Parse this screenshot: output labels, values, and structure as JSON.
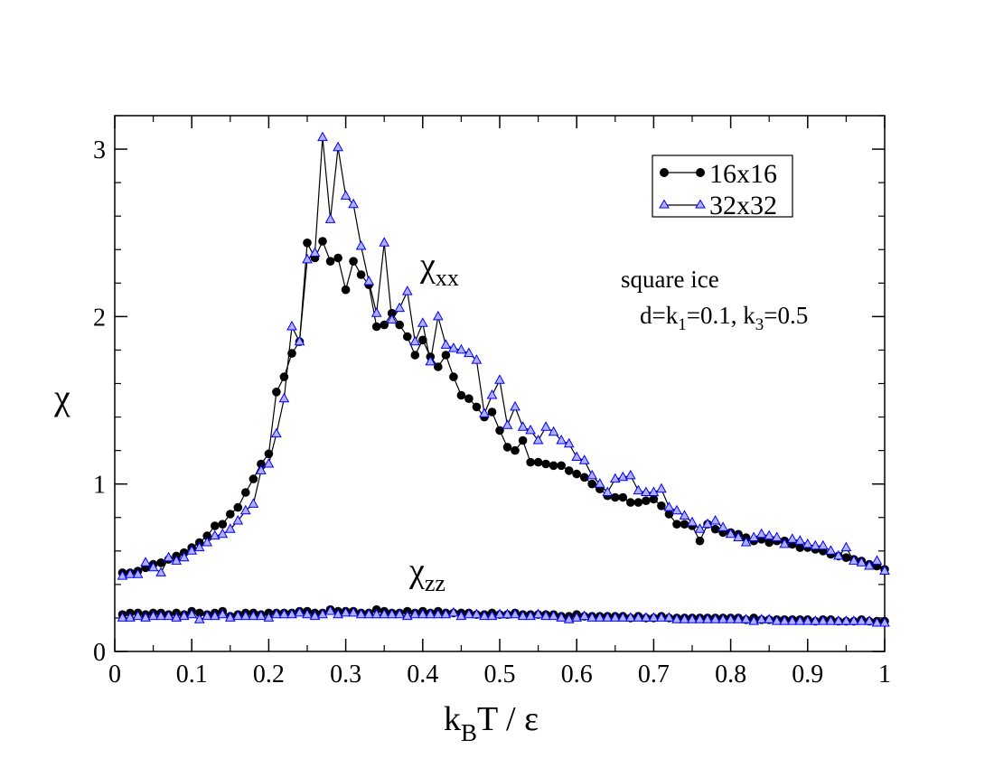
{
  "chart_data": {
    "type": "scatter",
    "title": "",
    "xlabel": {
      "main": "k",
      "sub": "B",
      "rest": "T / ε"
    },
    "ylabel": "χ",
    "xlim": [
      0,
      1
    ],
    "ylim": [
      0,
      3.2
    ],
    "xticks": [
      "0",
      "0.1",
      "0.2",
      "0.3",
      "0.4",
      "0.5",
      "0.6",
      "0.7",
      "0.8",
      "0.9",
      "1"
    ],
    "yticks": [
      "0",
      "1",
      "2",
      "3"
    ],
    "annotations": {
      "chi_xx": {
        "symbol": "χ",
        "sub": "xx"
      },
      "chi_zz": {
        "symbol": "χ",
        "sub": "zz"
      },
      "system": "square ice",
      "params": {
        "p1": "d=k",
        "s1": "1",
        "p2": "=0.1, k",
        "s2": "3",
        "p3": "=0.5"
      }
    },
    "legend": {
      "placement": "top-right"
    },
    "series": [
      {
        "name": "16x16",
        "marker": "circle",
        "color": "#000000",
        "x": [
          0.01,
          0.02,
          0.03,
          0.04,
          0.05,
          0.06,
          0.07,
          0.08,
          0.09,
          0.1,
          0.11,
          0.12,
          0.13,
          0.14,
          0.15,
          0.16,
          0.17,
          0.18,
          0.19,
          0.2,
          0.21,
          0.22,
          0.23,
          0.24,
          0.25,
          0.26,
          0.27,
          0.28,
          0.29,
          0.3,
          0.31,
          0.32,
          0.33,
          0.34,
          0.35,
          0.36,
          0.37,
          0.38,
          0.39,
          0.4,
          0.41,
          0.42,
          0.43,
          0.44,
          0.45,
          0.46,
          0.47,
          0.48,
          0.49,
          0.5,
          0.51,
          0.52,
          0.53,
          0.54,
          0.55,
          0.56,
          0.57,
          0.58,
          0.59,
          0.6,
          0.61,
          0.62,
          0.63,
          0.64,
          0.65,
          0.66,
          0.67,
          0.68,
          0.69,
          0.7,
          0.71,
          0.72,
          0.73,
          0.74,
          0.75,
          0.76,
          0.77,
          0.78,
          0.79,
          0.8,
          0.81,
          0.82,
          0.83,
          0.84,
          0.85,
          0.86,
          0.87,
          0.88,
          0.89,
          0.9,
          0.91,
          0.92,
          0.93,
          0.94,
          0.95,
          0.96,
          0.97,
          0.98,
          0.99,
          1.0
        ],
        "y_xx": [
          0.47,
          0.47,
          0.48,
          0.5,
          0.52,
          0.53,
          0.55,
          0.57,
          0.59,
          0.62,
          0.65,
          0.69,
          0.75,
          0.76,
          0.82,
          0.86,
          0.95,
          1.03,
          1.12,
          1.18,
          1.55,
          1.64,
          1.78,
          1.85,
          2.44,
          2.35,
          2.45,
          2.33,
          2.35,
          2.16,
          2.33,
          2.25,
          2.19,
          1.94,
          1.95,
          2.02,
          1.95,
          1.88,
          1.77,
          1.86,
          1.76,
          1.7,
          1.77,
          1.64,
          1.53,
          1.51,
          1.46,
          1.4,
          1.43,
          1.32,
          1.22,
          1.2,
          1.26,
          1.13,
          1.13,
          1.12,
          1.11,
          1.11,
          1.08,
          1.06,
          1.04,
          1.0,
          0.97,
          0.93,
          0.92,
          0.92,
          0.89,
          0.89,
          0.9,
          0.91,
          0.87,
          0.82,
          0.76,
          0.76,
          0.75,
          0.66,
          0.76,
          0.73,
          0.71,
          0.71,
          0.7,
          0.68,
          0.66,
          0.67,
          0.65,
          0.66,
          0.66,
          0.64,
          0.62,
          0.62,
          0.61,
          0.6,
          0.58,
          0.57,
          0.56,
          0.55,
          0.54,
          0.52,
          0.51,
          0.49
        ],
        "y_zz": [
          0.22,
          0.23,
          0.23,
          0.22,
          0.23,
          0.23,
          0.22,
          0.23,
          0.22,
          0.24,
          0.23,
          0.22,
          0.23,
          0.24,
          0.21,
          0.22,
          0.23,
          0.23,
          0.22,
          0.23,
          0.23,
          0.23,
          0.23,
          0.24,
          0.24,
          0.23,
          0.23,
          0.25,
          0.24,
          0.24,
          0.24,
          0.23,
          0.23,
          0.25,
          0.24,
          0.23,
          0.23,
          0.24,
          0.23,
          0.24,
          0.23,
          0.24,
          0.23,
          0.23,
          0.23,
          0.23,
          0.22,
          0.22,
          0.23,
          0.22,
          0.22,
          0.23,
          0.22,
          0.22,
          0.22,
          0.22,
          0.22,
          0.21,
          0.21,
          0.22,
          0.21,
          0.21,
          0.21,
          0.21,
          0.21,
          0.21,
          0.2,
          0.21,
          0.2,
          0.2,
          0.21,
          0.2,
          0.2,
          0.2,
          0.2,
          0.2,
          0.2,
          0.2,
          0.2,
          0.2,
          0.2,
          0.19,
          0.2,
          0.19,
          0.19,
          0.19,
          0.19,
          0.19,
          0.19,
          0.19,
          0.18,
          0.19,
          0.19,
          0.18,
          0.18,
          0.18,
          0.19,
          0.18,
          0.18,
          0.18
        ]
      },
      {
        "name": "32x32",
        "marker": "triangle",
        "color": "#0000ff",
        "x": [
          0.01,
          0.02,
          0.03,
          0.04,
          0.05,
          0.06,
          0.07,
          0.08,
          0.09,
          0.1,
          0.11,
          0.12,
          0.13,
          0.14,
          0.15,
          0.16,
          0.17,
          0.18,
          0.19,
          0.2,
          0.21,
          0.22,
          0.23,
          0.24,
          0.25,
          0.26,
          0.27,
          0.28,
          0.29,
          0.3,
          0.31,
          0.32,
          0.33,
          0.34,
          0.35,
          0.36,
          0.37,
          0.38,
          0.39,
          0.4,
          0.41,
          0.42,
          0.43,
          0.44,
          0.45,
          0.46,
          0.47,
          0.48,
          0.49,
          0.5,
          0.51,
          0.52,
          0.53,
          0.54,
          0.55,
          0.56,
          0.57,
          0.58,
          0.59,
          0.6,
          0.61,
          0.62,
          0.63,
          0.64,
          0.65,
          0.66,
          0.67,
          0.68,
          0.69,
          0.7,
          0.71,
          0.72,
          0.73,
          0.74,
          0.75,
          0.76,
          0.77,
          0.78,
          0.79,
          0.8,
          0.81,
          0.82,
          0.83,
          0.84,
          0.85,
          0.86,
          0.87,
          0.88,
          0.89,
          0.9,
          0.91,
          0.92,
          0.93,
          0.94,
          0.95,
          0.96,
          0.97,
          0.98,
          0.99,
          1.0
        ],
        "y_xx": [
          0.45,
          0.46,
          0.46,
          0.53,
          0.5,
          0.47,
          0.56,
          0.54,
          0.56,
          0.6,
          0.62,
          0.65,
          0.69,
          0.7,
          0.73,
          0.78,
          0.84,
          0.88,
          1.08,
          1.12,
          1.3,
          1.51,
          1.94,
          1.85,
          2.34,
          2.38,
          3.07,
          2.58,
          3.01,
          2.72,
          2.67,
          2.42,
          2.21,
          2.02,
          2.44,
          1.98,
          2.05,
          2.15,
          1.85,
          1.96,
          1.73,
          2.0,
          1.83,
          1.81,
          1.8,
          1.78,
          1.74,
          1.42,
          1.53,
          1.62,
          1.35,
          1.46,
          1.34,
          1.32,
          1.26,
          1.34,
          1.31,
          1.26,
          1.24,
          1.16,
          1.14,
          1.05,
          1.0,
          0.95,
          1.03,
          1.04,
          1.05,
          0.96,
          0.95,
          0.95,
          0.97,
          0.86,
          0.84,
          0.81,
          0.77,
          0.73,
          0.76,
          0.78,
          0.74,
          0.7,
          0.68,
          0.65,
          0.68,
          0.7,
          0.69,
          0.68,
          0.64,
          0.67,
          0.66,
          0.64,
          0.63,
          0.63,
          0.6,
          0.57,
          0.62,
          0.54,
          0.53,
          0.51,
          0.54,
          0.48
        ],
        "y_zz": [
          0.2,
          0.2,
          0.21,
          0.2,
          0.21,
          0.21,
          0.21,
          0.2,
          0.21,
          0.22,
          0.19,
          0.21,
          0.21,
          0.22,
          0.2,
          0.21,
          0.21,
          0.21,
          0.21,
          0.2,
          0.22,
          0.22,
          0.22,
          0.23,
          0.22,
          0.21,
          0.22,
          0.24,
          0.22,
          0.23,
          0.23,
          0.22,
          0.22,
          0.22,
          0.22,
          0.22,
          0.22,
          0.21,
          0.22,
          0.22,
          0.22,
          0.22,
          0.22,
          0.23,
          0.21,
          0.22,
          0.22,
          0.21,
          0.21,
          0.22,
          0.22,
          0.22,
          0.21,
          0.21,
          0.22,
          0.21,
          0.21,
          0.2,
          0.19,
          0.2,
          0.21,
          0.2,
          0.2,
          0.2,
          0.2,
          0.2,
          0.2,
          0.2,
          0.2,
          0.2,
          0.2,
          0.2,
          0.19,
          0.19,
          0.19,
          0.19,
          0.19,
          0.19,
          0.19,
          0.19,
          0.19,
          0.19,
          0.18,
          0.19,
          0.19,
          0.18,
          0.18,
          0.18,
          0.18,
          0.18,
          0.18,
          0.18,
          0.18,
          0.18,
          0.18,
          0.18,
          0.18,
          0.18,
          0.17,
          0.17
        ]
      }
    ]
  }
}
